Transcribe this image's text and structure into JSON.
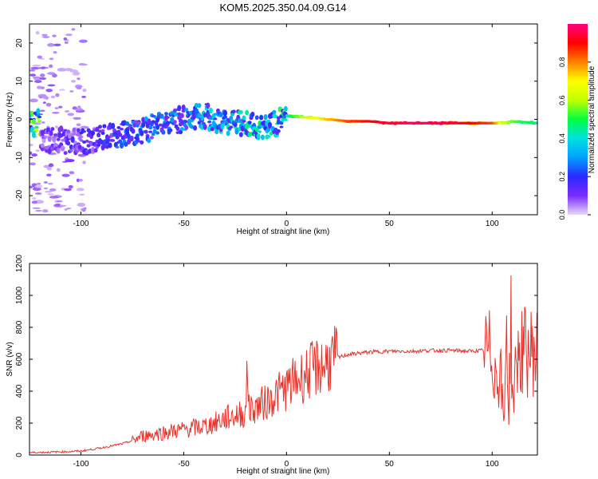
{
  "title": "KOM5.2025.350.04.09.G14",
  "chart_data": [
    {
      "type": "heatmap",
      "xlabel": "Height of straight line (km)",
      "ylabel": "Frequency (Hz)",
      "xlim": [
        -125,
        122
      ],
      "ylim": [
        -25,
        25
      ],
      "xticks": [
        -100,
        -50,
        0,
        50,
        100
      ],
      "yticks": [
        -20,
        -10,
        0,
        10,
        20
      ],
      "colorbar": {
        "label": "Normalized spectral amplitude",
        "range": [
          0,
          1
        ],
        "ticks": [
          "0.0",
          "0.2",
          "0.4",
          "0.6",
          "0.8"
        ],
        "tick_values": [
          0,
          0.2,
          0.4,
          0.6,
          0.8
        ],
        "colormap": [
          "#e8d8f8",
          "#7a2cff",
          "#2a2aff",
          "#00a0ff",
          "#00e0e0",
          "#00ff40",
          "#c0ff00",
          "#ffff00",
          "#ff8000",
          "#ff0000",
          "#ff0080"
        ]
      },
      "ridge": [
        {
          "x": -120,
          "y": -5,
          "a": 0.08
        },
        {
          "x": -100,
          "y": -6,
          "a": 0.12
        },
        {
          "x": -90,
          "y": -5,
          "a": 0.15
        },
        {
          "x": -80,
          "y": -4,
          "a": 0.18
        },
        {
          "x": -70,
          "y": -3,
          "a": 0.2
        },
        {
          "x": -60,
          "y": -1,
          "a": 0.22
        },
        {
          "x": -50,
          "y": 0,
          "a": 0.22
        },
        {
          "x": -40,
          "y": 1,
          "a": 0.25
        },
        {
          "x": -30,
          "y": -1,
          "a": 0.28
        },
        {
          "x": -20,
          "y": -1,
          "a": 0.3
        },
        {
          "x": -15,
          "y": -2,
          "a": 0.32
        },
        {
          "x": -10,
          "y": -2,
          "a": 0.3
        },
        {
          "x": -5,
          "y": -1,
          "a": 0.3
        },
        {
          "x": 0,
          "y": 1,
          "a": 0.4
        },
        {
          "x": 10,
          "y": 0.5,
          "a": 0.6
        },
        {
          "x": 20,
          "y": 0,
          "a": 0.7
        },
        {
          "x": 30,
          "y": -0.5,
          "a": 0.8
        },
        {
          "x": 40,
          "y": -0.5,
          "a": 0.85
        },
        {
          "x": 50,
          "y": -1,
          "a": 0.9
        },
        {
          "x": 60,
          "y": -1,
          "a": 0.92
        },
        {
          "x": 70,
          "y": -1,
          "a": 0.92
        },
        {
          "x": 80,
          "y": -1,
          "a": 0.9
        },
        {
          "x": 90,
          "y": -1,
          "a": 0.85
        },
        {
          "x": 100,
          "y": -1,
          "a": 0.8
        },
        {
          "x": 105,
          "y": -1,
          "a": 0.6
        },
        {
          "x": 110,
          "y": -0.5,
          "a": 0.5
        },
        {
          "x": 122,
          "y": -1,
          "a": 0.4
        }
      ]
    },
    {
      "type": "line",
      "xlabel": "Height of straight line (km)",
      "ylabel": "SNR (v/v)",
      "xlim": [
        -125,
        122
      ],
      "ylim": [
        0,
        1200
      ],
      "xticks": [
        -100,
        -50,
        0,
        50,
        100
      ],
      "yticks": [
        0,
        200,
        400,
        600,
        800,
        1000,
        1200
      ],
      "series": [
        {
          "color": "#e8332b",
          "x": [
            -125,
            -110,
            -100,
            -90,
            -80,
            -75,
            -70,
            -65,
            -60,
            -55,
            -50,
            -45,
            -40,
            -35,
            -30,
            -25,
            -20,
            -19,
            -18,
            -15,
            -10,
            -5,
            0,
            5,
            10,
            15,
            20,
            25,
            30,
            40,
            50,
            60,
            70,
            80,
            90,
            95,
            98,
            100,
            102,
            104,
            105,
            106,
            107,
            108,
            109,
            110,
            112,
            115,
            122
          ],
          "y": [
            15,
            20,
            25,
            45,
            70,
            90,
            120,
            130,
            140,
            150,
            160,
            170,
            180,
            200,
            230,
            250,
            260,
            520,
            280,
            300,
            330,
            380,
            420,
            470,
            510,
            550,
            580,
            610,
            630,
            645,
            650,
            650,
            655,
            655,
            650,
            655,
            630,
            650,
            480,
            560,
            300,
            200,
            1000,
            150,
            900,
            300,
            620,
            645,
            650
          ]
        }
      ]
    }
  ]
}
